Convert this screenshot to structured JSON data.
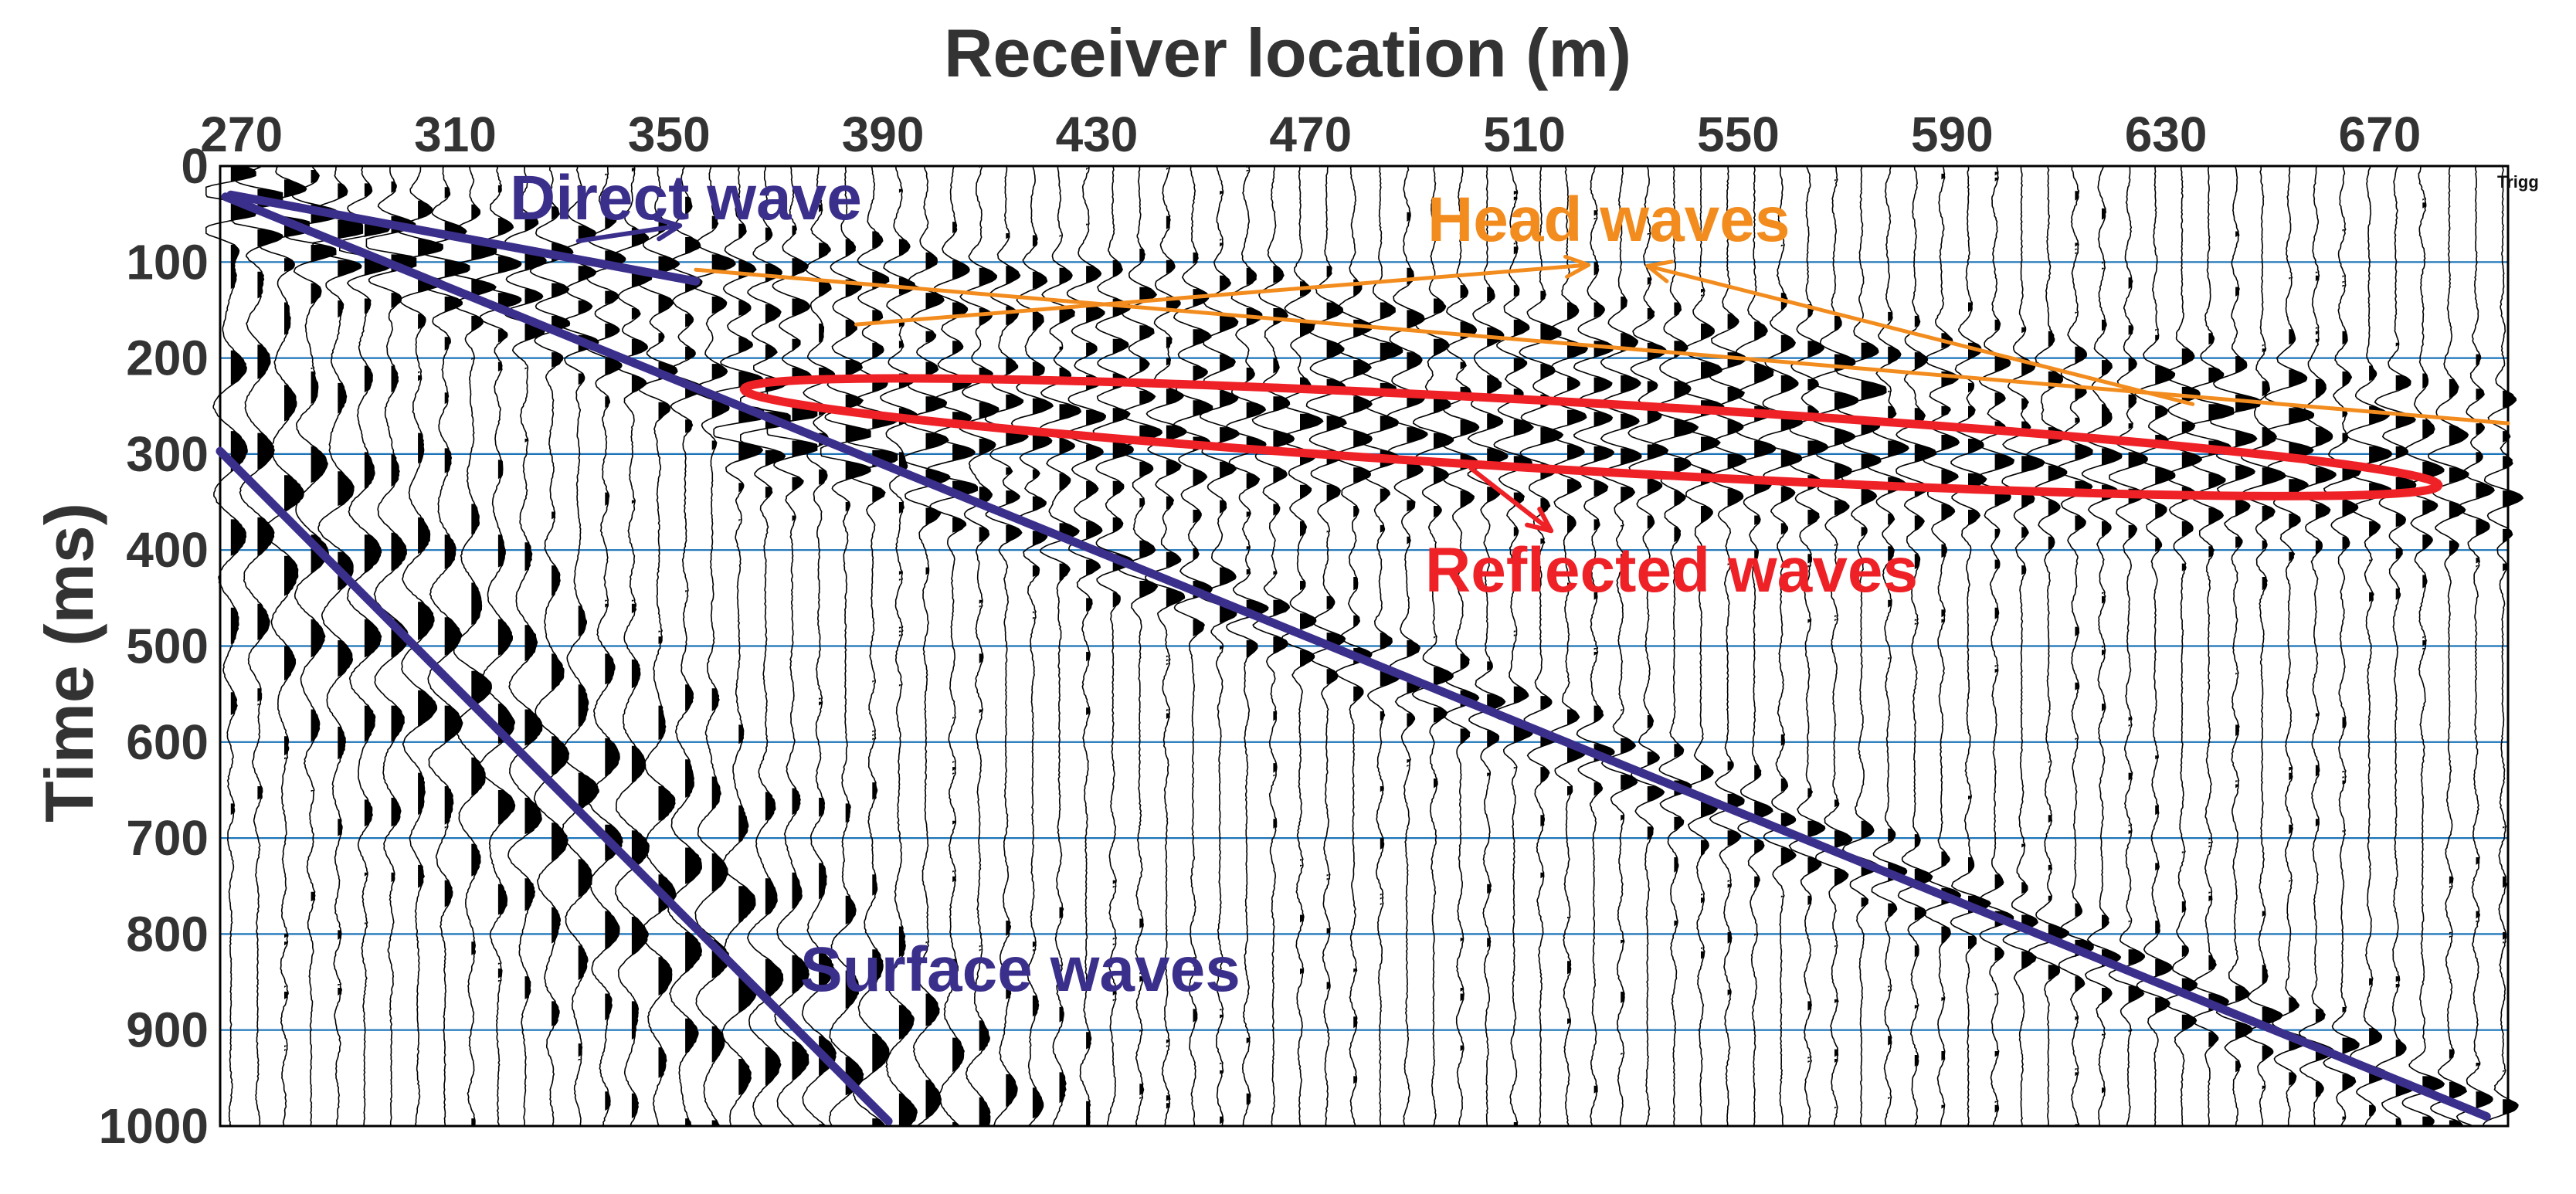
{
  "chart_data": {
    "type": "seismic-wiggle-section",
    "title": "Receiver location (m)",
    "xlabel": "Receiver location (m)",
    "ylabel": "Time (ms)",
    "x_ticks": [
      270,
      310,
      350,
      390,
      430,
      470,
      510,
      550,
      590,
      630,
      670
    ],
    "y_ticks": [
      0,
      100,
      200,
      300,
      400,
      500,
      600,
      700,
      800,
      900,
      1000
    ],
    "xlim": [
      266,
      694
    ],
    "ylim": [
      0,
      1000
    ],
    "grid": "horizontal",
    "trace_spacing_m": 5,
    "corner_label": "Trigg",
    "colors": {
      "trace": "#000000",
      "grid": "#1a73b8",
      "direct": "#3b2f8c",
      "surface": "#3b2f8c",
      "head": "#f28c1e",
      "reflected": "#ee2127",
      "text": "#333333"
    },
    "annotations": {
      "direct_wave": {
        "label": "Direct wave",
        "line": {
          "x": [
            268,
            355
          ],
          "y": [
            30,
            120
          ]
        },
        "lower_line": {
          "x": [
            267,
            690
          ],
          "y": [
            32,
            990
          ]
        },
        "arrow": {
          "from": [
            333,
            78
          ],
          "to": [
            352,
            62
          ]
        }
      },
      "head_waves": {
        "label": "Head waves",
        "line": {
          "x": [
            355,
            694
          ],
          "y": [
            108,
            268
          ]
        },
        "arrows": [
          {
            "from": [
              385,
              165
            ],
            "to": [
              522,
              103
            ]
          },
          {
            "from": [
              635,
              248
            ],
            "to": [
              533,
              104
            ]
          }
        ]
      },
      "reflected_waves": {
        "label": "Reflected waves",
        "ellipse": {
          "x_range": [
            364,
            681
          ],
          "y_top": 205,
          "y_bottom": 360,
          "tilt_ms": 100
        },
        "arrow": {
          "from": [
            500,
            315
          ],
          "to": [
            515,
            380
          ]
        }
      },
      "surface_waves": {
        "label": "Surface waves",
        "line": {
          "x": [
            266,
            391
          ],
          "y": [
            297,
            995
          ]
        }
      }
    }
  }
}
